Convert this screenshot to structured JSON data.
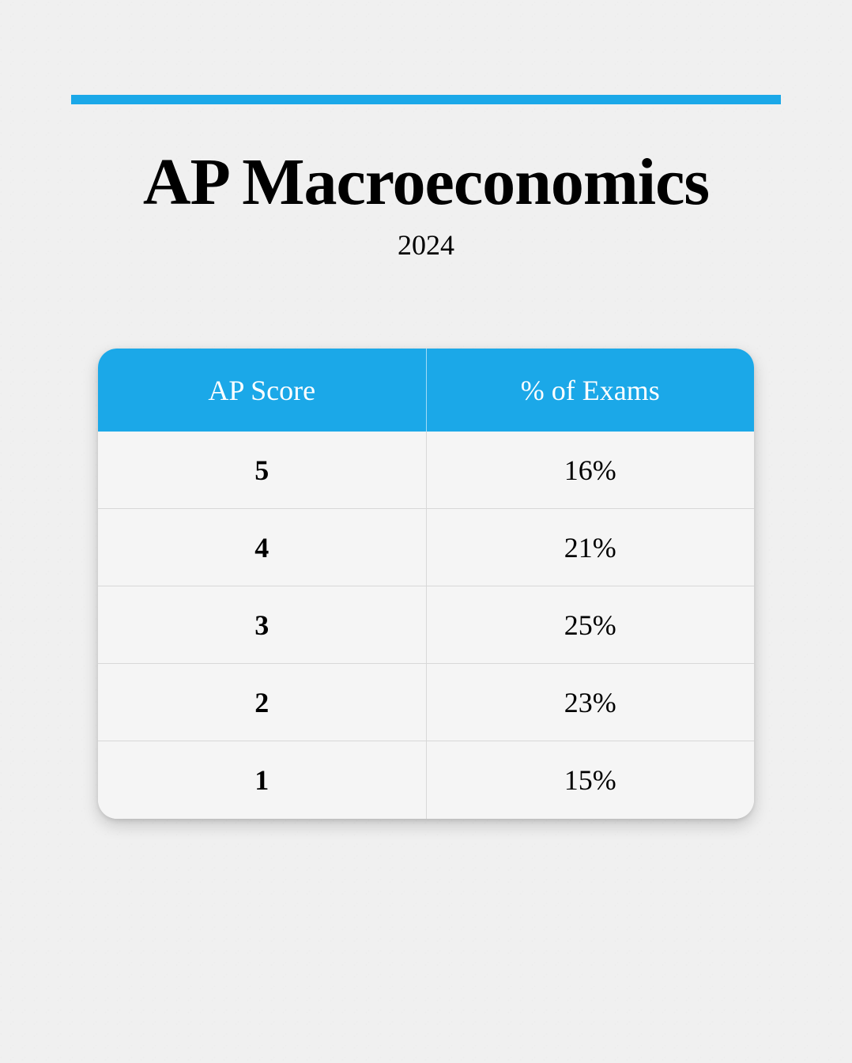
{
  "header": {
    "title": "AP Macroeconomics",
    "year": "2024",
    "accent_color": "#1ba8e8",
    "title_fontsize": 84,
    "subtitle_fontsize": 36,
    "title_color": "#000000"
  },
  "table": {
    "type": "table",
    "header_bg_color": "#1ba8e8",
    "header_text_color": "#ffffff",
    "body_bg_color": "#f5f5f5",
    "border_color": "#d8d8d8",
    "cell_text_color": "#000000",
    "header_fontsize": 36,
    "cell_fontsize": 36,
    "border_radius": 24,
    "columns": [
      "AP Score",
      "% of Exams"
    ],
    "rows": [
      {
        "score": "5",
        "pct": "16%"
      },
      {
        "score": "4",
        "pct": "21%"
      },
      {
        "score": "3",
        "pct": "25%"
      },
      {
        "score": "2",
        "pct": "23%"
      },
      {
        "score": "1",
        "pct": "15%"
      }
    ]
  },
  "background_color": "#f0f0f0"
}
